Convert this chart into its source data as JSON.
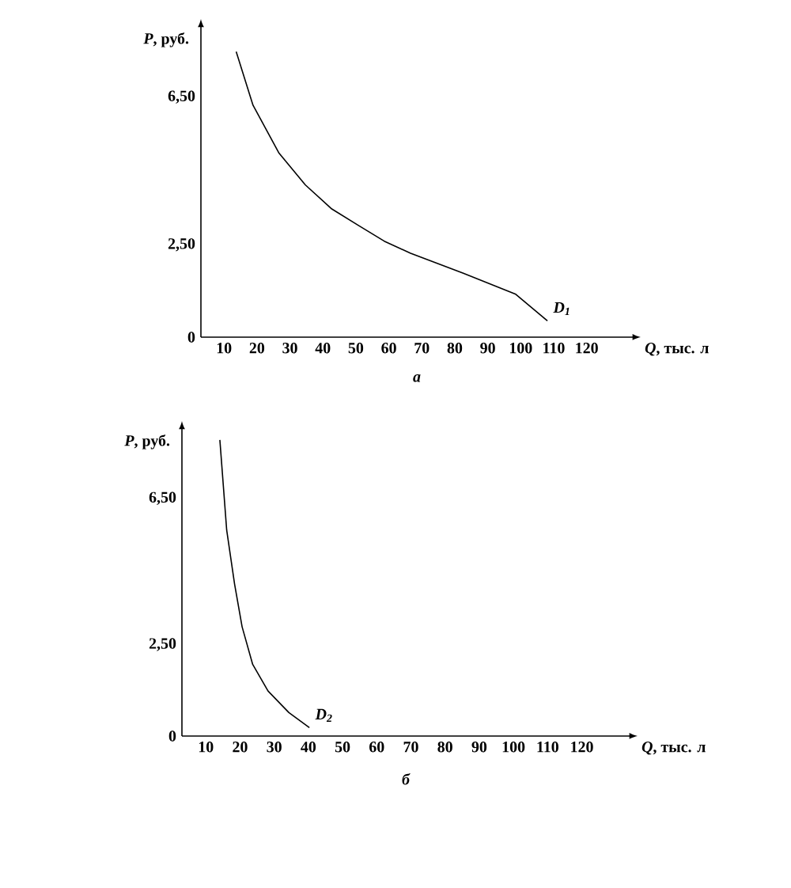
{
  "chart_data": [
    {
      "type": "line",
      "xlabel": "*Q*, тыс. л",
      "ylabel": "*P*, руб.",
      "xlim": [
        3,
        134
      ],
      "ylim": [
        0,
        8.4
      ],
      "xticks": [
        10,
        20,
        30,
        40,
        50,
        60,
        70,
        80,
        90,
        100,
        110,
        120
      ],
      "yticks": [
        {
          "value": 0,
          "label": "0"
        },
        {
          "value": 2.5,
          "label": "2,50"
        },
        {
          "value": 6.5,
          "label": "6,50"
        }
      ],
      "grid": false,
      "legend": false,
      "marker": "none",
      "line_style": "solid",
      "series": [
        {
          "name": "D$_{1}$",
          "color": "#000000",
          "x": [
            13.7,
            18.8,
            26.7,
            34.7,
            42.7,
            50.7,
            58.6,
            66.6,
            82.6,
            98.5,
            108.1
          ],
          "values": [
            7.73,
            6.28,
            4.98,
            4.12,
            3.47,
            3.03,
            2.6,
            2.27,
            1.73,
            1.16,
            0.44
          ]
        }
      ],
      "annotations": [
        "а"
      ]
    },
    {
      "type": "line",
      "xlabel": "*Q*, тыс. л",
      "ylabel": "*P*, руб.",
      "xlim": [
        3,
        134
      ],
      "ylim": [
        0,
        8.4
      ],
      "xticks": [
        10,
        20,
        30,
        40,
        50,
        60,
        70,
        80,
        90,
        100,
        110,
        120
      ],
      "yticks": [
        {
          "value": 0,
          "label": "0"
        },
        {
          "value": 2.5,
          "label": "2,50"
        },
        {
          "value": 6.5,
          "label": "6,50"
        }
      ],
      "grid": false,
      "legend": false,
      "marker": "none",
      "line_style": "solid",
      "series": [
        {
          "name": "D$_{2}$",
          "color": "#000000",
          "x": [
            14.1,
            16.1,
            18.4,
            20.6,
            23.7,
            28.2,
            34.3,
            40.3
          ],
          "values": [
            8.1,
            5.63,
            4.16,
            2.99,
            1.96,
            1.23,
            0.64,
            0.23
          ]
        }
      ],
      "annotations": [
        "б"
      ]
    }
  ]
}
